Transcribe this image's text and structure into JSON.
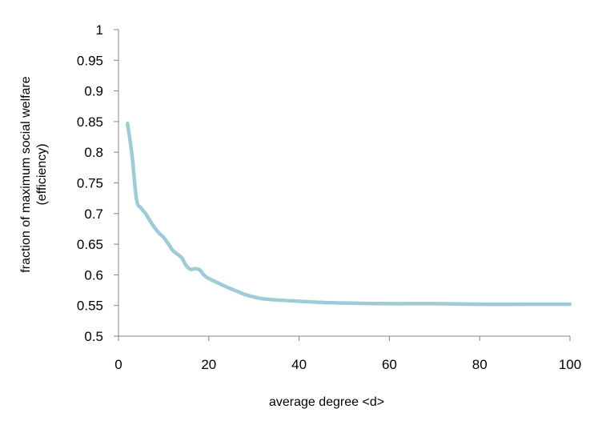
{
  "chart_data": {
    "type": "line",
    "title": "",
    "xlabel": "average degree <d>",
    "ylabel_lines": [
      "fraction of maximum social welfare",
      "(efficiency)"
    ],
    "xlim": [
      0,
      100
    ],
    "ylim": [
      0.5,
      1
    ],
    "xticks": [
      0,
      20,
      40,
      60,
      80,
      100
    ],
    "yticks": [
      0.5,
      0.55,
      0.6,
      0.65,
      0.7,
      0.75,
      0.8,
      0.85,
      0.9,
      0.95,
      1
    ],
    "ytick_labels": [
      "0.5",
      "0.55",
      "0.6",
      "0.65",
      "0.7",
      "0.75",
      "0.8",
      "0.85",
      "0.9",
      "0.95",
      "1"
    ],
    "grid": false,
    "series": [
      {
        "color": "#9ecbd8",
        "x": [
          2,
          3,
          4,
          5,
          6,
          7,
          8,
          9,
          10,
          11,
          12,
          13,
          14,
          15,
          16,
          17,
          18,
          19,
          20,
          22,
          24,
          26,
          28,
          30,
          32,
          35,
          40,
          45,
          50,
          60,
          70,
          80,
          90,
          100
        ],
        "y": [
          0.847,
          0.795,
          0.723,
          0.709,
          0.7,
          0.688,
          0.677,
          0.668,
          0.661,
          0.651,
          0.64,
          0.634,
          0.628,
          0.615,
          0.609,
          0.61,
          0.608,
          0.599,
          0.594,
          0.587,
          0.58,
          0.574,
          0.568,
          0.564,
          0.561,
          0.559,
          0.557,
          0.555,
          0.554,
          0.553,
          0.553,
          0.552,
          0.552,
          0.552
        ]
      }
    ]
  }
}
